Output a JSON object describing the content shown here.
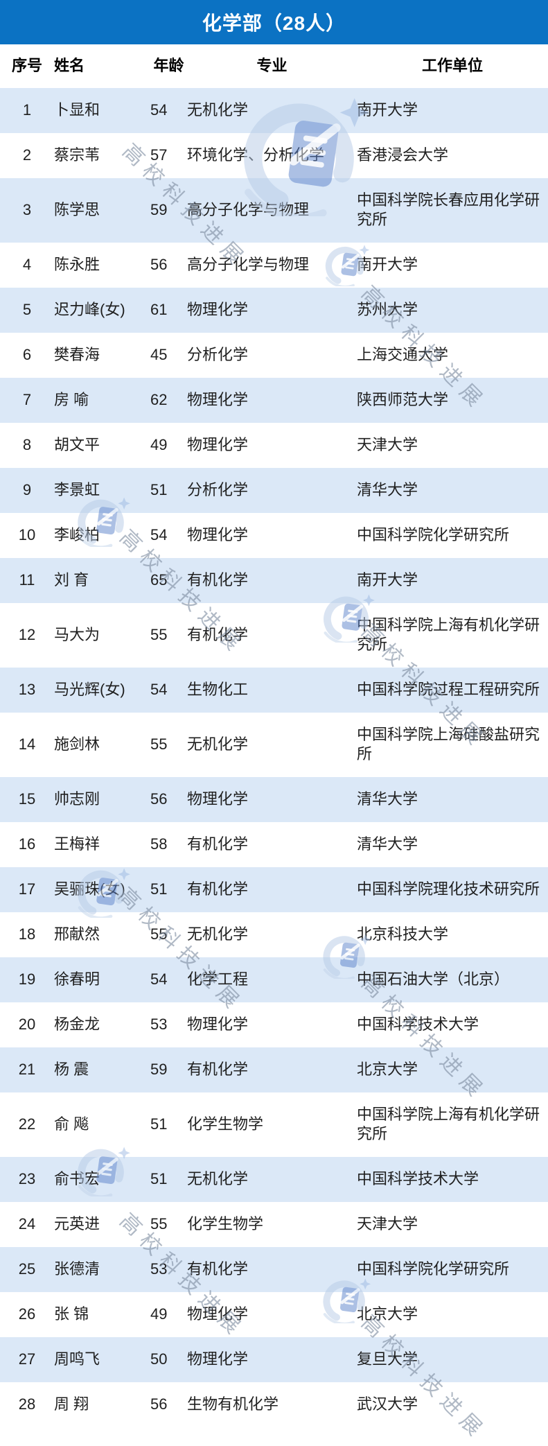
{
  "banner": {
    "title": "化学部（28人）"
  },
  "columns": [
    "序号",
    "姓名",
    "年龄",
    "专业",
    "工作单位"
  ],
  "rows": [
    {
      "no": "1",
      "name": "卜显和",
      "age": "54",
      "field": "无机化学",
      "org": "南开大学"
    },
    {
      "no": "2",
      "name": "蔡宗苇",
      "age": "57",
      "field": "环境化学、分析化学",
      "org": "香港浸会大学"
    },
    {
      "no": "3",
      "name": "陈学思",
      "age": "59",
      "field": "高分子化学与物理",
      "org": "中国科学院长春应用化学研究所"
    },
    {
      "no": "4",
      "name": "陈永胜",
      "age": "56",
      "field": "高分子化学与物理",
      "org": "南开大学"
    },
    {
      "no": "5",
      "name": "迟力峰(女)",
      "age": "61",
      "field": "物理化学",
      "org": "苏州大学"
    },
    {
      "no": "6",
      "name": "樊春海",
      "age": "45",
      "field": "分析化学",
      "org": "上海交通大学"
    },
    {
      "no": "7",
      "name": "房 喻",
      "age": "62",
      "field": "物理化学",
      "org": "陕西师范大学"
    },
    {
      "no": "8",
      "name": "胡文平",
      "age": "49",
      "field": "物理化学",
      "org": "天津大学"
    },
    {
      "no": "9",
      "name": "李景虹",
      "age": "51",
      "field": "分析化学",
      "org": "清华大学"
    },
    {
      "no": "10",
      "name": "李峻柏",
      "age": "54",
      "field": "物理化学",
      "org": "中国科学院化学研究所"
    },
    {
      "no": "11",
      "name": "刘 育",
      "age": "65",
      "field": "有机化学",
      "org": "南开大学"
    },
    {
      "no": "12",
      "name": "马大为",
      "age": "55",
      "field": "有机化学",
      "org": "中国科学院上海有机化学研究所"
    },
    {
      "no": "13",
      "name": "马光辉(女)",
      "age": "54",
      "field": "生物化工",
      "org": "中国科学院过程工程研究所"
    },
    {
      "no": "14",
      "name": "施剑林",
      "age": "55",
      "field": "无机化学",
      "org": "中国科学院上海硅酸盐研究所"
    },
    {
      "no": "15",
      "name": "帅志刚",
      "age": "56",
      "field": "物理化学",
      "org": "清华大学"
    },
    {
      "no": "16",
      "name": "王梅祥",
      "age": "58",
      "field": "有机化学",
      "org": "清华大学"
    },
    {
      "no": "17",
      "name": "吴骊珠(女)",
      "age": "51",
      "field": "有机化学",
      "org": "中国科学院理化技术研究所"
    },
    {
      "no": "18",
      "name": "邢献然",
      "age": "55",
      "field": "无机化学",
      "org": "北京科技大学"
    },
    {
      "no": "19",
      "name": "徐春明",
      "age": "54",
      "field": "化学工程",
      "org": "中国石油大学（北京）"
    },
    {
      "no": "20",
      "name": "杨金龙",
      "age": "53",
      "field": "物理化学",
      "org": "中国科学技术大学"
    },
    {
      "no": "21",
      "name": "杨 震",
      "age": "59",
      "field": "有机化学",
      "org": "北京大学"
    },
    {
      "no": "22",
      "name": "俞 飚",
      "age": "51",
      "field": "化学生物学",
      "org": "中国科学院上海有机化学研究所"
    },
    {
      "no": "23",
      "name": "俞书宏",
      "age": "51",
      "field": "无机化学",
      "org": "中国科学技术大学"
    },
    {
      "no": "24",
      "name": "元英进",
      "age": "55",
      "field": "化学生物学",
      "org": "天津大学"
    },
    {
      "no": "25",
      "name": "张德清",
      "age": "53",
      "field": "有机化学",
      "org": "中国科学院化学研究所"
    },
    {
      "no": "26",
      "name": "张 锦",
      "age": "49",
      "field": "物理化学",
      "org": "北京大学"
    },
    {
      "no": "27",
      "name": "周鸣飞",
      "age": "50",
      "field": "物理化学",
      "org": "复旦大学"
    },
    {
      "no": "28",
      "name": "周 翔",
      "age": "56",
      "field": "生物有机化学",
      "org": "武汉大学"
    }
  ],
  "watermark": {
    "text": "高校科技进展"
  },
  "colors": {
    "banner_blue": "#0b72c3",
    "stripe_blue": "#dbe8f7",
    "body_text": "#1f1f1f",
    "watermark_blue": "#b7cbe7",
    "watermark_icon_blue": "#5b82cb"
  }
}
